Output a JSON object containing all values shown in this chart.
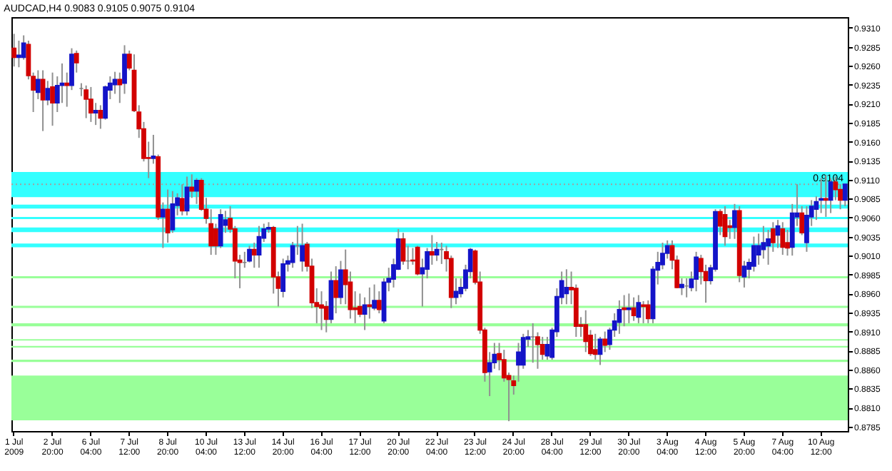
{
  "chart_data": {
    "type": "candlestick",
    "title": "AUDCAD,H4 0.9083 0.9105 0.9075 0.9104",
    "categories": [
      "1 Jul 2009",
      null,
      null,
      null,
      null,
      null,
      null,
      null,
      "2 Jul 20:00",
      null,
      null,
      null,
      null,
      null,
      null,
      null,
      "6 Jul 04:00",
      null,
      null,
      null,
      null,
      null,
      null,
      null,
      "7 Jul 12:00",
      null,
      null,
      null,
      null,
      null,
      null,
      null,
      "8 Jul 20:00",
      null,
      null,
      null,
      null,
      null,
      null,
      null,
      "10 Jul 04:00",
      null,
      null,
      null,
      null,
      null,
      null,
      null,
      "13 Jul 12:00",
      null,
      null,
      null,
      null,
      null,
      null,
      null,
      "14 Jul 20:00",
      null,
      null,
      null,
      null,
      null,
      null,
      null,
      "16 Jul 04:00",
      null,
      null,
      null,
      null,
      null,
      null,
      null,
      "17 Jul 12:00",
      null,
      null,
      null,
      null,
      null,
      null,
      null,
      "20 Jul 20:00",
      null,
      null,
      null,
      null,
      null,
      null,
      null,
      "22 Jul 04:00",
      null,
      null,
      null,
      null,
      null,
      null,
      null,
      "23 Jul 12:00",
      null,
      null,
      null,
      null,
      null,
      null,
      null,
      "24 Jul 20:00",
      null,
      null,
      null,
      null,
      null,
      null,
      null,
      "28 Jul 04:00",
      null,
      null,
      null,
      null,
      null,
      null,
      null,
      "29 Jul 12:00",
      null,
      null,
      null,
      null,
      null,
      null,
      null,
      "30 Jul 20:00",
      null,
      null,
      null,
      null,
      null,
      null,
      null,
      "3 Aug 04:00",
      null,
      null,
      null,
      null,
      null,
      null,
      null,
      "4 Aug 12:00",
      null,
      null,
      null,
      null,
      null,
      null,
      null,
      "5 Aug 20:00",
      null,
      null,
      null,
      null,
      null,
      null,
      null,
      "7 Aug 04:00",
      null,
      null,
      null,
      null,
      null,
      null,
      null,
      "10 Aug 12:00",
      null,
      null,
      null,
      null,
      null
    ],
    "ohlc": [
      [
        0.9283,
        0.9302,
        0.9259,
        0.9271
      ],
      [
        0.9271,
        0.9293,
        0.9258,
        0.9274
      ],
      [
        0.9271,
        0.93,
        0.9268,
        0.929
      ],
      [
        0.9288,
        0.9293,
        0.9242,
        0.9247
      ],
      [
        0.9246,
        0.9251,
        0.9199,
        0.9228
      ],
      [
        0.9225,
        0.9254,
        0.9216,
        0.9242
      ],
      [
        0.9242,
        0.9254,
        0.9174,
        0.9215
      ],
      [
        0.9215,
        0.924,
        0.9208,
        0.923
      ],
      [
        0.9232,
        0.9251,
        0.9181,
        0.9211
      ],
      [
        0.9211,
        0.9246,
        0.9199,
        0.9234
      ],
      [
        0.9234,
        0.9263,
        0.9211,
        0.9237
      ],
      [
        0.9237,
        0.9251,
        0.9206,
        0.9234
      ],
      [
        0.9234,
        0.9283,
        0.9228,
        0.9275
      ],
      [
        0.9276,
        0.928,
        0.9251,
        0.9264
      ],
      [
        0.923,
        0.9237,
        0.922,
        0.923
      ],
      [
        0.9228,
        0.9234,
        0.9191,
        0.9216
      ],
      [
        0.9216,
        0.9232,
        0.9186,
        0.9198
      ],
      [
        0.9198,
        0.9211,
        0.9182,
        0.9201
      ],
      [
        0.9201,
        0.9208,
        0.9177,
        0.9191
      ],
      [
        0.9191,
        0.9234,
        0.9189,
        0.9232
      ],
      [
        0.9228,
        0.9246,
        0.9216,
        0.9237
      ],
      [
        0.9235,
        0.9252,
        0.9223,
        0.9242
      ],
      [
        0.9242,
        0.9251,
        0.9211,
        0.9235
      ],
      [
        0.9237,
        0.9287,
        0.9223,
        0.9275
      ],
      [
        0.9275,
        0.928,
        0.9254,
        0.9257
      ],
      [
        0.9254,
        0.9275,
        0.9199,
        0.9201
      ],
      [
        0.9199,
        0.9208,
        0.9165,
        0.9177
      ],
      [
        0.9177,
        0.9186,
        0.9134,
        0.9138
      ],
      [
        0.9139,
        0.916,
        0.9112,
        0.9138
      ],
      [
        0.9138,
        0.9169,
        0.9131,
        0.9141
      ],
      [
        0.914,
        0.9143,
        0.9057,
        0.9061
      ],
      [
        0.9061,
        0.908,
        0.902,
        0.9071
      ],
      [
        0.9071,
        0.9097,
        0.9027,
        0.904
      ],
      [
        0.9044,
        0.9095,
        0.904,
        0.9078
      ],
      [
        0.9076,
        0.9092,
        0.9063,
        0.9086
      ],
      [
        0.9085,
        0.9104,
        0.9063,
        0.9069
      ],
      [
        0.9069,
        0.9114,
        0.9063,
        0.91
      ],
      [
        0.91,
        0.9117,
        0.9086,
        0.9095
      ],
      [
        0.9095,
        0.9112,
        0.9078,
        0.9109
      ],
      [
        0.9109,
        0.9112,
        0.9069,
        0.9071
      ],
      [
        0.9071,
        0.9086,
        0.9052,
        0.9059
      ],
      [
        0.9052,
        0.9071,
        0.9011,
        0.9023
      ],
      [
        0.9045,
        0.9052,
        0.9011,
        0.9023
      ],
      [
        0.9023,
        0.9071,
        0.902,
        0.9064
      ],
      [
        0.905,
        0.9069,
        0.904,
        0.9057
      ],
      [
        0.9059,
        0.9075,
        0.904,
        0.9045
      ],
      [
        0.9045,
        0.9049,
        0.898,
        0.9003
      ],
      [
        0.9004,
        0.9011,
        0.8967,
        0.9001
      ],
      [
        0.9001,
        0.9015,
        0.8994,
        0.9001
      ],
      [
        0.9003,
        0.9023,
        0.9001,
        0.9018
      ],
      [
        0.9018,
        0.9027,
        0.8994,
        0.9011
      ],
      [
        0.9011,
        0.9049,
        0.8994,
        0.9035
      ],
      [
        0.9033,
        0.9052,
        0.9028,
        0.9045
      ],
      [
        0.9045,
        0.9054,
        0.904,
        0.9047
      ],
      [
        0.9047,
        0.9049,
        0.896,
        0.8982
      ],
      [
        0.8982,
        0.8989,
        0.8943,
        0.8967
      ],
      [
        0.8963,
        0.9006,
        0.8955,
        0.8999
      ],
      [
        0.8999,
        0.901,
        0.8989,
        0.9003
      ],
      [
        0.9001,
        0.9028,
        0.8994,
        0.9023
      ],
      [
        0.9023,
        0.9049,
        0.9011,
        0.9023
      ],
      [
        0.9003,
        0.9052,
        0.8989,
        0.9023
      ],
      [
        0.9025,
        0.9028,
        0.8989,
        0.8996
      ],
      [
        0.8996,
        0.9006,
        0.8941,
        0.8948
      ],
      [
        0.8948,
        0.8967,
        0.8921,
        0.8943
      ],
      [
        0.8945,
        0.8963,
        0.8912,
        0.8941
      ],
      [
        0.8943,
        0.895,
        0.8909,
        0.8926
      ],
      [
        0.8926,
        0.8989,
        0.8921,
        0.8977
      ],
      [
        0.8977,
        0.8996,
        0.8934,
        0.8955
      ],
      [
        0.8955,
        0.9003,
        0.8946,
        0.8991
      ],
      [
        0.8991,
        0.9018,
        0.8946,
        0.8972
      ],
      [
        0.8975,
        0.8989,
        0.8927,
        0.8939
      ],
      [
        0.8941,
        0.8963,
        0.8921,
        0.8939
      ],
      [
        0.8943,
        0.896,
        0.8929,
        0.8933
      ],
      [
        0.8933,
        0.8955,
        0.8912,
        0.8945
      ],
      [
        0.8945,
        0.8968,
        0.8927,
        0.8943
      ],
      [
        0.8941,
        0.8972,
        0.8938,
        0.8951
      ],
      [
        0.8951,
        0.8963,
        0.8934,
        0.8939
      ],
      [
        0.8924,
        0.898,
        0.8921,
        0.8975
      ],
      [
        0.8975,
        0.8994,
        0.8963,
        0.898
      ],
      [
        0.8979,
        0.9006,
        0.8968,
        0.8998
      ],
      [
        0.8992,
        0.9045,
        0.8991,
        0.9032
      ],
      [
        0.9032,
        0.904,
        0.8998,
        0.9003
      ],
      [
        0.9003,
        0.9023,
        0.8992,
        0.9003
      ],
      [
        0.9004,
        0.902,
        0.8998,
        0.9003
      ],
      [
        0.9021,
        0.9023,
        0.8984,
        0.8986
      ],
      [
        0.8986,
        0.9006,
        0.8943,
        0.8994
      ],
      [
        0.8992,
        0.902,
        0.898,
        0.9015
      ],
      [
        0.9015,
        0.9037,
        0.8998,
        0.9011
      ],
      [
        0.9011,
        0.9028,
        0.9003,
        0.9018
      ],
      [
        0.9018,
        0.9027,
        0.8999,
        0.9018
      ],
      [
        0.9015,
        0.9023,
        0.8989,
        0.9006
      ],
      [
        0.9006,
        0.901,
        0.8941,
        0.8955
      ],
      [
        0.8955,
        0.898,
        0.8946,
        0.8963
      ],
      [
        0.896,
        0.898,
        0.8955,
        0.8968
      ],
      [
        0.8967,
        0.8998,
        0.8963,
        0.8991
      ],
      [
        0.8989,
        0.902,
        0.898,
        0.9018
      ],
      [
        0.9016,
        0.9018,
        0.8972,
        0.8975
      ],
      [
        0.8975,
        0.8989,
        0.8907,
        0.8912
      ],
      [
        0.8912,
        0.8915,
        0.8844,
        0.8856
      ],
      [
        0.8857,
        0.8883,
        0.8825,
        0.8869
      ],
      [
        0.8869,
        0.8895,
        0.8861,
        0.888
      ],
      [
        0.8881,
        0.8895,
        0.8859,
        0.8873
      ],
      [
        0.8873,
        0.8886,
        0.8844,
        0.8849
      ],
      [
        0.8852,
        0.8856,
        0.8792,
        0.8847
      ],
      [
        0.8845,
        0.8852,
        0.8827,
        0.8839
      ],
      [
        0.8866,
        0.8895,
        0.8844,
        0.8883
      ],
      [
        0.8866,
        0.8907,
        0.8861,
        0.8902
      ],
      [
        0.89,
        0.8912,
        0.889,
        0.8903
      ],
      [
        0.8903,
        0.8921,
        0.8869,
        0.8903
      ],
      [
        0.8903,
        0.8909,
        0.8861,
        0.8893
      ],
      [
        0.8893,
        0.8903,
        0.8873,
        0.888
      ],
      [
        0.8878,
        0.8903,
        0.8873,
        0.8893
      ],
      [
        0.8876,
        0.8915,
        0.8873,
        0.8912
      ],
      [
        0.891,
        0.8967,
        0.8903,
        0.8956
      ],
      [
        0.8955,
        0.8989,
        0.8946,
        0.8977
      ],
      [
        0.896,
        0.8992,
        0.8946,
        0.8968
      ],
      [
        0.8968,
        0.8989,
        0.8946,
        0.8965
      ],
      [
        0.8967,
        0.8972,
        0.8903,
        0.8917
      ],
      [
        0.8919,
        0.8929,
        0.8903,
        0.8917
      ],
      [
        0.8919,
        0.8938,
        0.8883,
        0.8897
      ],
      [
        0.8905,
        0.8912,
        0.8878,
        0.8881
      ],
      [
        0.8886,
        0.8907,
        0.8873,
        0.888
      ],
      [
        0.888,
        0.8903,
        0.8866,
        0.89
      ],
      [
        0.89,
        0.891,
        0.8883,
        0.8892
      ],
      [
        0.8893,
        0.8915,
        0.8886,
        0.8912
      ],
      [
        0.8912,
        0.8934,
        0.8903,
        0.8924
      ],
      [
        0.8922,
        0.8951,
        0.8907,
        0.8939
      ],
      [
        0.8941,
        0.8958,
        0.8917,
        0.8939
      ],
      [
        0.8939,
        0.896,
        0.8921,
        0.8941
      ],
      [
        0.8941,
        0.8955,
        0.8924,
        0.8931
      ],
      [
        0.8929,
        0.8958,
        0.8921,
        0.8948
      ],
      [
        0.8945,
        0.895,
        0.8921,
        0.8943
      ],
      [
        0.8945,
        0.8951,
        0.8921,
        0.8927
      ],
      [
        0.8927,
        0.8996,
        0.8921,
        0.8992
      ],
      [
        0.8991,
        0.9015,
        0.8972,
        0.9001
      ],
      [
        0.8998,
        0.9027,
        0.8992,
        0.9013
      ],
      [
        0.9013,
        0.903,
        0.9006,
        0.9023
      ],
      [
        0.9023,
        0.903,
        0.8992,
        0.9004
      ],
      [
        0.9004,
        0.901,
        0.8967,
        0.8968
      ],
      [
        0.8968,
        0.898,
        0.8958,
        0.8972
      ],
      [
        0.897,
        0.898,
        0.8955,
        0.897
      ],
      [
        0.8968,
        0.8989,
        0.8963,
        0.8979
      ],
      [
        0.8979,
        0.9015,
        0.8963,
        0.9008
      ],
      [
        0.9006,
        0.9011,
        0.8972,
        0.8989
      ],
      [
        0.8989,
        0.8998,
        0.8948,
        0.8977
      ],
      [
        0.8977,
        0.8998,
        0.8972,
        0.8994
      ],
      [
        0.8992,
        0.9071,
        0.8989,
        0.9068
      ],
      [
        0.9068,
        0.9071,
        0.9037,
        0.9049
      ],
      [
        0.9064,
        0.9075,
        0.9023,
        0.9035
      ],
      [
        0.9049,
        0.9057,
        0.9032,
        0.9047
      ],
      [
        0.9047,
        0.9078,
        0.9032,
        0.9069
      ],
      [
        0.9069,
        0.9075,
        0.8975,
        0.8984
      ],
      [
        0.8982,
        0.9003,
        0.8968,
        0.8996
      ],
      [
        0.8992,
        0.9006,
        0.898,
        0.9001
      ],
      [
        0.8996,
        0.9035,
        0.8989,
        0.9023
      ],
      [
        0.9011,
        0.9039,
        0.8998,
        0.9023
      ],
      [
        0.9018,
        0.9049,
        0.9006,
        0.9027
      ],
      [
        0.9023,
        0.9044,
        0.8998,
        0.9032
      ],
      [
        0.9045,
        0.9054,
        0.9015,
        0.9027
      ],
      [
        0.9037,
        0.9057,
        0.902,
        0.9049
      ],
      [
        0.9045,
        0.9054,
        0.9011,
        0.9021
      ],
      [
        0.9027,
        0.9044,
        0.901,
        0.902
      ],
      [
        0.9021,
        0.9078,
        0.901,
        0.9066
      ],
      [
        0.9061,
        0.9104,
        0.9049,
        0.9066
      ],
      [
        0.9066,
        0.9075,
        0.9037,
        0.904
      ],
      [
        0.9027,
        0.9075,
        0.9015,
        0.9063
      ],
      [
        0.9061,
        0.9083,
        0.9049,
        0.9075
      ],
      [
        0.9071,
        0.9088,
        0.9057,
        0.9081
      ],
      [
        0.9083,
        0.9112,
        0.9066,
        0.9085
      ],
      [
        0.9085,
        0.9116,
        0.9061,
        0.9083
      ],
      [
        0.9083,
        0.9112,
        0.9066,
        0.9107
      ],
      [
        0.9107,
        0.9114,
        0.9083,
        0.9097
      ],
      [
        0.9097,
        0.9104,
        0.9071,
        0.9083
      ],
      [
        0.9083,
        0.9105,
        0.9075,
        0.9104
      ]
    ],
    "colors": [
      "#d20000",
      "#1414c8",
      "#1414c8",
      "#d20000",
      "#d20000",
      "#1414c8",
      "#d20000",
      "#1414c8",
      "#d20000",
      "#1414c8",
      "#1414c8",
      "#d20000",
      "#1414c8",
      "#d20000",
      "#808080",
      "#d20000",
      "#d20000",
      "#1414c8",
      "#d20000",
      "#1414c8",
      "#1414c8",
      "#1414c8",
      "#d20000",
      "#1414c8",
      "#d20000",
      "#d20000",
      "#d20000",
      "#d20000",
      "#d20000",
      "#1414c8",
      "#d20000",
      "#1414c8",
      "#d20000",
      "#1414c8",
      "#1414c8",
      "#d20000",
      "#1414c8",
      "#d20000",
      "#1414c8",
      "#d20000",
      "#d20000",
      "#d20000",
      "#d20000",
      "#1414c8",
      "#1414c8",
      "#d20000",
      "#d20000",
      "#d20000",
      "#808080",
      "#1414c8",
      "#d20000",
      "#1414c8",
      "#1414c8",
      "#1414c8",
      "#d20000",
      "#d20000",
      "#1414c8",
      "#1414c8",
      "#1414c8",
      "#808080",
      "#1414c8",
      "#d20000",
      "#d20000",
      "#d20000",
      "#d20000",
      "#d20000",
      "#1414c8",
      "#d20000",
      "#1414c8",
      "#d20000",
      "#d20000",
      "#d20000",
      "#d20000",
      "#1414c8",
      "#d20000",
      "#1414c8",
      "#d20000",
      "#1414c8",
      "#1414c8",
      "#1414c8",
      "#1414c8",
      "#d20000",
      "#808080",
      "#d20000",
      "#d20000",
      "#1414c8",
      "#1414c8",
      "#d20000",
      "#1414c8",
      "#808080",
      "#d20000",
      "#d20000",
      "#1414c8",
      "#1414c8",
      "#1414c8",
      "#1414c8",
      "#d20000",
      "#d20000",
      "#d20000",
      "#1414c8",
      "#1414c8",
      "#d20000",
      "#d20000",
      "#d20000",
      "#d20000",
      "#1414c8",
      "#1414c8",
      "#1414c8",
      "#808080",
      "#d20000",
      "#d20000",
      "#1414c8",
      "#1414c8",
      "#1414c8",
      "#1414c8",
      "#1414c8",
      "#d20000",
      "#d20000",
      "#d20000",
      "#d20000",
      "#d20000",
      "#d20000",
      "#1414c8",
      "#d20000",
      "#1414c8",
      "#1414c8",
      "#1414c8",
      "#d20000",
      "#1414c8",
      "#d20000",
      "#1414c8",
      "#d20000",
      "#d20000",
      "#1414c8",
      "#1414c8",
      "#1414c8",
      "#1414c8",
      "#d20000",
      "#d20000",
      "#1414c8",
      "#808080",
      "#1414c8",
      "#1414c8",
      "#d20000",
      "#d20000",
      "#1414c8",
      "#1414c8",
      "#d20000",
      "#d20000",
      "#d20000",
      "#1414c8",
      "#d20000",
      "#1414c8",
      "#1414c8",
      "#1414c8",
      "#1414c8",
      "#1414c8",
      "#1414c8",
      "#d20000",
      "#1414c8",
      "#d20000",
      "#d20000",
      "#1414c8",
      "#1414c8",
      "#d20000",
      "#1414c8",
      "#1414c8",
      "#1414c8",
      "#1414c8",
      "#d20000",
      "#1414c8",
      "#d20000",
      "#d20000",
      "#1414c8"
    ],
    "ylim": [
      0.8779,
      0.9324
    ],
    "yticks": [
      0.8785,
      {
        "value": 0.881,
        "label": "0.8810"
      },
      0.8835,
      {
        "value": 0.886,
        "label": "0.8860"
      },
      0.8885,
      {
        "value": 0.891,
        "label": "0.8910"
      },
      0.8935,
      {
        "value": 0.896,
        "label": "0.8960"
      },
      0.8985,
      {
        "value": 0.901,
        "label": "0.9010"
      },
      0.9035,
      {
        "value": 0.906,
        "label": "0.9060"
      },
      0.9085,
      {
        "value": 0.911,
        "label": "0.9110"
      },
      0.9135,
      {
        "value": 0.916,
        "label": "0.9160"
      },
      0.9185,
      {
        "value": 0.921,
        "label": "0.9210"
      },
      0.9235,
      {
        "value": 0.926,
        "label": "0.9260"
      },
      0.9285,
      {
        "value": 0.931,
        "label": "0.9310"
      }
    ],
    "ref_lines": [
      {
        "axis": "y",
        "value": 0.9104,
        "label": "0.9104",
        "color": "#a0a0a0",
        "line_style": "dotted"
      }
    ],
    "bands": [
      {
        "axis": "y",
        "from": 0.9087,
        "to": 0.912,
        "color": "#33ffff"
      },
      {
        "axis": "y",
        "from": 0.9072,
        "to": 0.9077,
        "color": "#33ffff"
      },
      {
        "axis": "y",
        "from": 0.9058,
        "to": 0.9061,
        "color": "#33ffff"
      },
      {
        "axis": "y",
        "from": 0.9041,
        "to": 0.9047,
        "color": "#33ffff"
      },
      {
        "axis": "y",
        "from": 0.9021,
        "to": 0.9026,
        "color": "#33ffff"
      },
      {
        "axis": "y",
        "from": 0.898,
        "to": 0.8983,
        "color": "#99ff99"
      },
      {
        "axis": "y",
        "from": 0.8941,
        "to": 0.8944,
        "color": "#99ff99"
      },
      {
        "axis": "y",
        "from": 0.8917,
        "to": 0.8921,
        "color": "#99ff99"
      },
      {
        "axis": "y",
        "from": 0.8898,
        "to": 0.89,
        "color": "#99ff99"
      },
      {
        "axis": "y",
        "from": 0.8889,
        "to": 0.8891,
        "color": "#99ff99"
      },
      {
        "axis": "y",
        "from": 0.887,
        "to": 0.8873,
        "color": "#99ff99"
      },
      {
        "axis": "y",
        "from": 0.8793,
        "to": 0.8852,
        "color": "#99ff99"
      }
    ]
  }
}
